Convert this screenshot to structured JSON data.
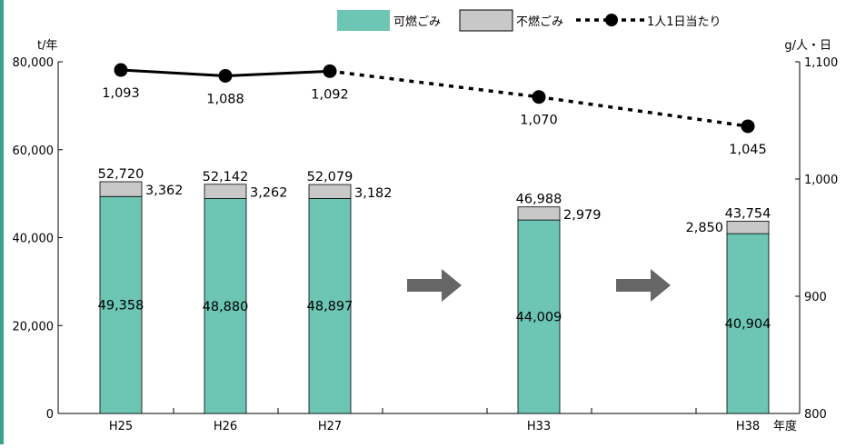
{
  "colors": {
    "burnable": "#6dc5b3",
    "nonburnable": "#c8c8c8",
    "line": "#000000",
    "left_bar": "#3aa48a",
    "arrow": "#666666",
    "axis": "#000000"
  },
  "chart_data": {
    "type": "bar",
    "categories": [
      "H25",
      "H26",
      "H27",
      "H33",
      "H38"
    ],
    "x_axis_unit": "年度",
    "y_left": {
      "unit": "t/年",
      "range": [
        0,
        80000
      ],
      "ticks": [
        "0",
        "20,000",
        "40,000",
        "60,000",
        "80,000"
      ],
      "tick_values": [
        0,
        20000,
        40000,
        60000,
        80000
      ]
    },
    "y_right": {
      "unit": "g/人・日",
      "range": [
        800,
        1100
      ],
      "ticks": [
        "800",
        "900",
        "1,000",
        "1,100"
      ],
      "tick_values": [
        800,
        900,
        1000,
        1100
      ]
    },
    "legend": {
      "burnable": "可燃ごみ",
      "nonburnable": "不燃ごみ",
      "per_person": "1人1日当たり",
      "placement": "top"
    },
    "series": [
      {
        "name": "可燃ごみ",
        "axis": "left",
        "stacked": true,
        "values": [
          49358,
          48880,
          48897,
          44009,
          40904
        ],
        "labels": [
          "49,358",
          "48,880",
          "48,897",
          "44,009",
          "40,904"
        ]
      },
      {
        "name": "不燃ごみ",
        "axis": "left",
        "stacked": true,
        "values": [
          3362,
          3262,
          3182,
          2979,
          2850
        ],
        "labels": [
          "3,362",
          "3,262",
          "3,182",
          "2,979",
          "2,850"
        ]
      },
      {
        "name": "1人1日当たり",
        "axis": "right",
        "type": "line",
        "values": [
          1093,
          1088,
          1092,
          1070,
          1045
        ],
        "labels": [
          "1,093",
          "1,088",
          "1,092",
          "1,070",
          "1,045"
        ],
        "solid_through": "H27",
        "dotted_after": "H27"
      }
    ],
    "totals": {
      "values": [
        52720,
        52142,
        52079,
        46988,
        43754
      ],
      "labels": [
        "52,720",
        "52,142",
        "52,079",
        "46,988",
        "43,754"
      ]
    },
    "grid": false
  }
}
